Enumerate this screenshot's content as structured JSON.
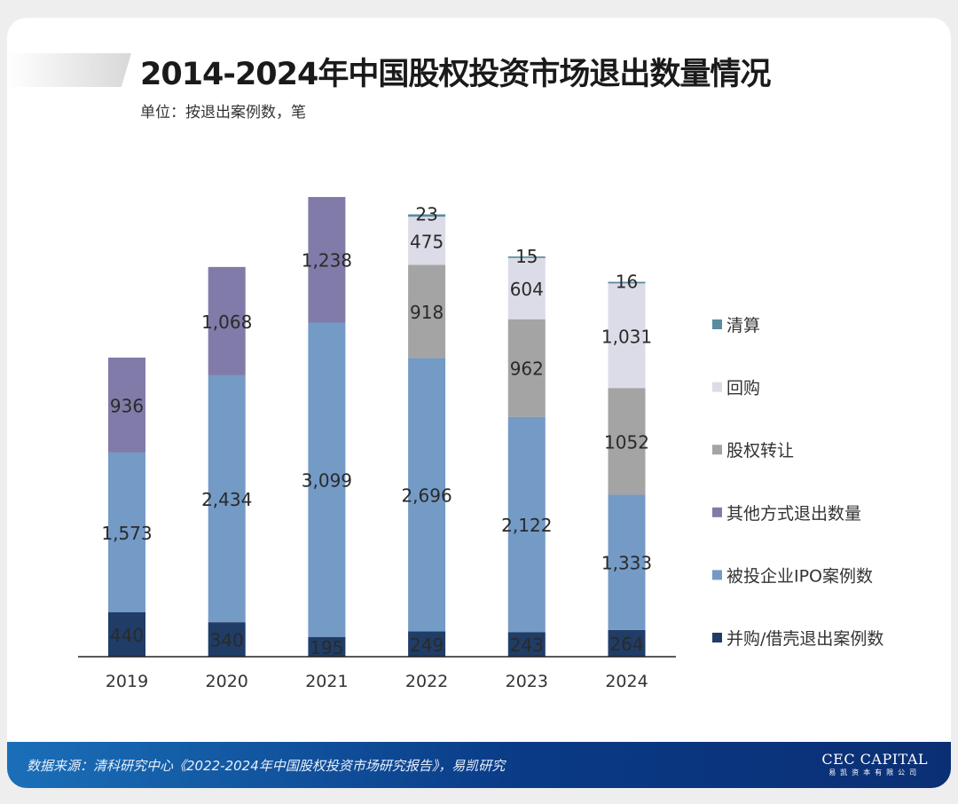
{
  "header": {
    "title": "2014-2024年中国股权投资市场退出数量情况",
    "subtitle": "单位：按退出案例数，笔"
  },
  "chart_data": {
    "type": "bar",
    "stacked": true,
    "title": "2014-2024年中国股权投资市场退出数量情况",
    "ylabel": "",
    "categories": [
      "2019",
      "2020",
      "2021",
      "2022",
      "2023",
      "2024"
    ],
    "series": [
      {
        "name": "并购/借壳退出案例数",
        "color": "#1f3d66",
        "values": [
          440,
          340,
          195,
          249,
          243,
          264
        ],
        "labels": [
          "440",
          "340",
          "195",
          "249",
          "243",
          "264"
        ]
      },
      {
        "name": "被投企业IPO案例数",
        "color": "#749ac6",
        "values": [
          1573,
          2434,
          3099,
          2696,
          2122,
          1333
        ],
        "labels": [
          "1,573",
          "2,434",
          "3,099",
          "2,696",
          "2,122",
          "1,333"
        ]
      },
      {
        "name": "其他方式退出数量",
        "color": "#807ba8",
        "values": [
          936,
          1068,
          1238,
          null,
          null,
          null
        ],
        "labels": [
          "936",
          "1,068",
          "1,238",
          "",
          "",
          ""
        ]
      },
      {
        "name": "股权转让",
        "color": "#a4a4a4",
        "values": [
          null,
          null,
          null,
          918,
          962,
          1052
        ],
        "labels": [
          "",
          "",
          "",
          "918",
          "962",
          "1052"
        ]
      },
      {
        "name": "回购",
        "color": "#dcdce8",
        "values": [
          null,
          null,
          null,
          475,
          604,
          1031
        ],
        "labels": [
          "",
          "",
          "",
          "475",
          "604",
          "1,031"
        ]
      },
      {
        "name": "清算",
        "color": "#5a8a9e",
        "values": [
          null,
          null,
          null,
          23,
          15,
          16
        ],
        "labels": [
          "",
          "",
          "",
          "23",
          "15",
          "16"
        ]
      }
    ],
    "legend": "right",
    "grid": false
  },
  "footer": {
    "source": "数据来源：清科研究中心《2022-2024年中国股权投资市场研究报告》，易凯研究",
    "logo_en": "CEC CAPITAL",
    "logo_cn": "易凯资本有限公司"
  }
}
